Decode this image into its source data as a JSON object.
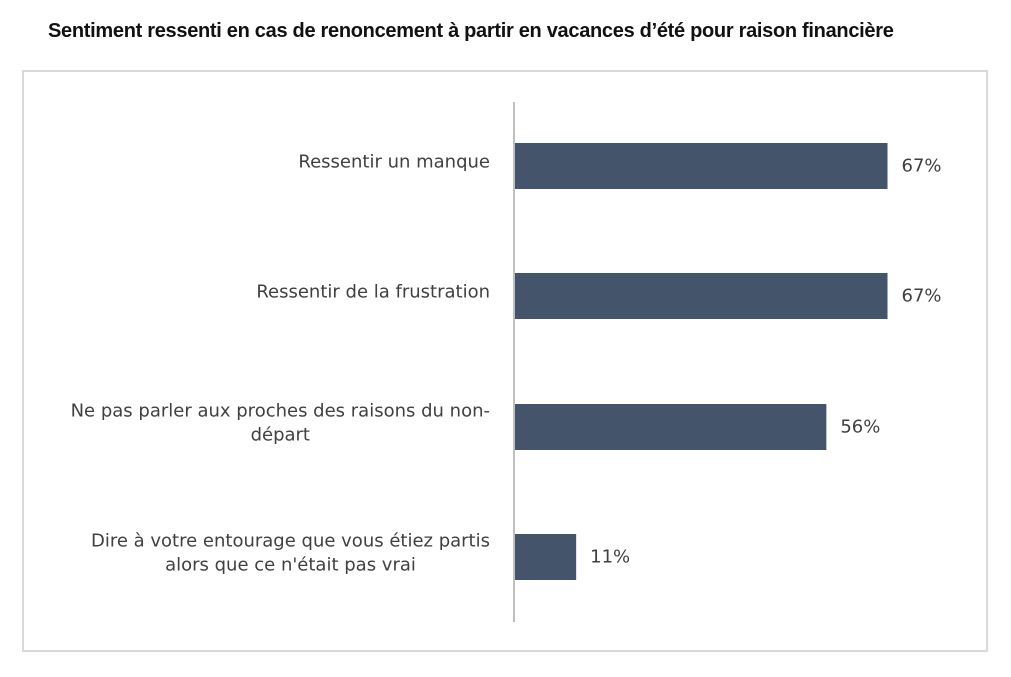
{
  "page": {
    "title": "Sentiment ressenti en cas de renoncement à partir en vacances d’été pour raison financière"
  },
  "colors": {
    "bar": "#44546a",
    "axis": "#bfbfbf",
    "text": "#404040",
    "frame_border": "#d9d9d9"
  },
  "chart_data": {
    "type": "bar",
    "orientation": "horizontal",
    "title": "Sentiment ressenti en cas de renoncement à partir en vacances d’été pour raison financière",
    "categories": [
      [
        "Ressentir un manque"
      ],
      [
        "Ressentir de la frustration"
      ],
      [
        "Ne pas parler aux proches des raisons du non-",
        "départ"
      ],
      [
        "Dire à votre entourage que vous étiez partis",
        "alors que ce n'était pas vrai"
      ]
    ],
    "values": [
      67,
      67,
      56,
      11
    ],
    "value_labels": [
      "67%",
      "67%",
      "56%",
      "11%"
    ],
    "unit": "%",
    "xlim": [
      0,
      100
    ],
    "grid": false,
    "legend": "none"
  }
}
